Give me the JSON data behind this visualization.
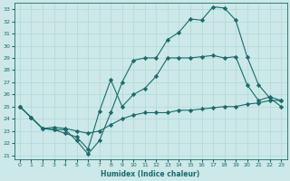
{
  "xlabel": "Humidex (Indice chaleur)",
  "bg_color": "#cce8e8",
  "line_color": "#1a6b6b",
  "grid_color": "#b0d8d8",
  "xlim": [
    -0.5,
    23.5
  ],
  "ylim": [
    20.7,
    33.5
  ],
  "yticks": [
    21,
    22,
    23,
    24,
    25,
    26,
    27,
    28,
    29,
    30,
    31,
    32,
    33
  ],
  "xticks": [
    0,
    1,
    2,
    3,
    4,
    5,
    6,
    7,
    8,
    9,
    10,
    11,
    12,
    13,
    14,
    15,
    16,
    17,
    18,
    19,
    20,
    21,
    22,
    23
  ],
  "series": [
    {
      "x": [
        0,
        1,
        2,
        3,
        4,
        5,
        6,
        7,
        8,
        9,
        10,
        11,
        12,
        13,
        14,
        15,
        16,
        17,
        18,
        19,
        20,
        21,
        22,
        23
      ],
      "y": [
        25.0,
        24.1,
        23.2,
        23.1,
        23.1,
        22.2,
        21.1,
        22.2,
        24.5,
        27.0,
        28.8,
        29.0,
        29.0,
        30.5,
        31.1,
        32.2,
        32.1,
        33.2,
        33.1,
        32.1,
        29.1,
        26.8,
        25.7,
        25.0
      ]
    },
    {
      "x": [
        0,
        1,
        2,
        3,
        4,
        5,
        6,
        7,
        8,
        9,
        10,
        11,
        12,
        13,
        14,
        15,
        16,
        17,
        18,
        19,
        20,
        21,
        22,
        23
      ],
      "y": [
        25.0,
        24.1,
        23.2,
        23.1,
        22.8,
        22.5,
        21.5,
        24.6,
        27.2,
        25.0,
        26.0,
        26.5,
        27.5,
        29.0,
        29.0,
        29.0,
        29.1,
        29.2,
        29.0,
        29.1,
        26.8,
        25.5,
        25.8,
        25.5
      ]
    },
    {
      "x": [
        0,
        1,
        2,
        3,
        4,
        5,
        6,
        7,
        8,
        9,
        10,
        11,
        12,
        13,
        14,
        15,
        16,
        17,
        18,
        19,
        20,
        21,
        22,
        23
      ],
      "y": [
        25.0,
        24.1,
        23.2,
        23.3,
        23.2,
        23.0,
        22.8,
        23.0,
        23.5,
        24.0,
        24.3,
        24.5,
        24.5,
        24.5,
        24.7,
        24.7,
        24.8,
        24.9,
        25.0,
        25.0,
        25.2,
        25.3,
        25.5,
        25.5
      ]
    }
  ],
  "marker": "D",
  "markersize": 2.2,
  "linewidth": 0.8
}
